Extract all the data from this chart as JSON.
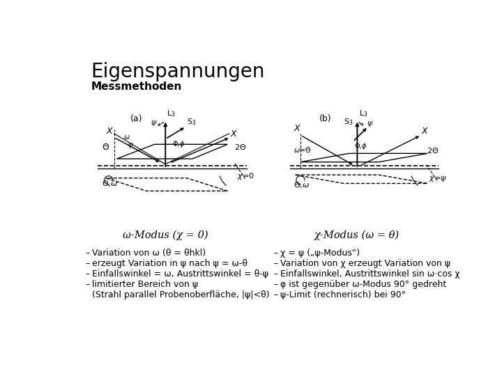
{
  "title": "Eigenspannungen",
  "subtitle": "Messmethoden",
  "omega_label": "ω-Modus (χ = 0)",
  "chi_label": "χ-Modus (ω = θ)",
  "left_bullets": [
    "Variation von ω (θ = θhkl)",
    "erzeugt Variation in ψ nach ψ = ω-θ",
    "Einfallswinkel = ω, Austrittswinkel = θ-ψ",
    "limitierter Bereich von ψ",
    "(Strahl parallel Probenoberfläche, |ψ|<θ)"
  ],
  "right_bullets": [
    "χ = ψ („ψ-Modus“)",
    "Variation von χ erzeugt Variation von ψ",
    "Einfallswinkel, Austrittswinkel sin ω·cos χ",
    "φ ist gegenüber ω-Modus 90° gedreht",
    "ψ-Limit (rechnerisch) bei 90°"
  ],
  "bg_color": "#ffffff",
  "text_color": "#000000"
}
